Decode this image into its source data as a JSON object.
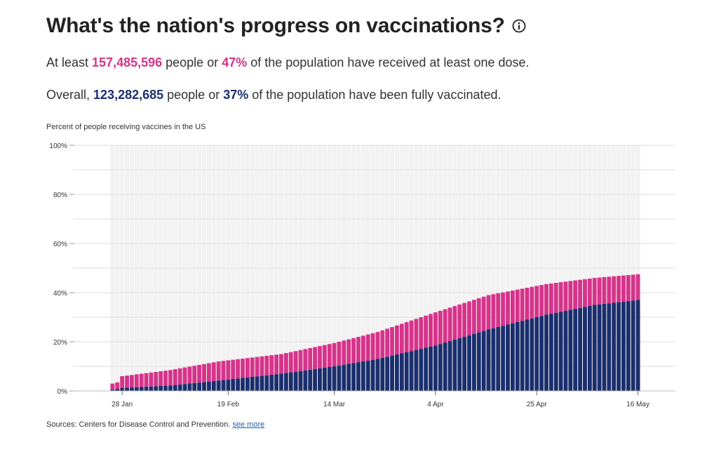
{
  "header": {
    "title": "What's the nation's progress on vaccinations?",
    "info_icon": "info-circle-icon"
  },
  "stats": {
    "line1_prefix": "At least ",
    "line1_count": "157,485,596",
    "line1_mid": " people or ",
    "line1_pct": "47%",
    "line1_suffix": " of the population have received at least one dose.",
    "line2_prefix": "Overall, ",
    "line2_count": "123,282,685",
    "line2_mid": " people or ",
    "line2_pct": "37%",
    "line2_suffix": " of the population have been fully vaccinated."
  },
  "chart_caption": "Percent of people receiving vaccines in the US",
  "source": {
    "text": "Sources: Centers for Disease Control and Prevention.",
    "link": "see more"
  },
  "colors": {
    "one_dose": "#d6338a",
    "fully": "#1b2f6e",
    "background_band": "#f2f2f2",
    "grid": "#dddddd"
  },
  "chart_data": {
    "type": "bar",
    "stacked": true,
    "ylim": [
      0,
      100
    ],
    "yticks": [
      "0%",
      "20%",
      "40%",
      "60%",
      "80%",
      "100%"
    ],
    "xticks": [
      "28 Jan",
      "19 Feb",
      "14 Mar",
      "4 Apr",
      "25 Apr",
      "16 May"
    ],
    "xtick_indices": [
      2,
      24,
      46,
      67,
      88,
      109
    ],
    "n_bars": 110,
    "grid": true,
    "series": [
      {
        "key": "fully",
        "anchors": [
          [
            0,
            0.5
          ],
          [
            1,
            0.8
          ],
          [
            2,
            1.2
          ],
          [
            12,
            2.2
          ],
          [
            22,
            4.2
          ],
          [
            35,
            7.0
          ],
          [
            46,
            10.0
          ],
          [
            55,
            13.0
          ],
          [
            67,
            18.5
          ],
          [
            78,
            25.0
          ],
          [
            90,
            31.0
          ],
          [
            100,
            35.0
          ],
          [
            109,
            37.0
          ]
        ]
      },
      {
        "key": "one_dose",
        "anchors": [
          [
            0,
            3.0
          ],
          [
            1,
            3.5
          ],
          [
            2,
            6.0
          ],
          [
            12,
            8.5
          ],
          [
            22,
            12.0
          ],
          [
            35,
            15.0
          ],
          [
            46,
            19.5
          ],
          [
            55,
            24.0
          ],
          [
            67,
            32.0
          ],
          [
            78,
            39.0
          ],
          [
            90,
            43.5
          ],
          [
            100,
            46.0
          ],
          [
            109,
            47.5
          ]
        ]
      }
    ]
  }
}
